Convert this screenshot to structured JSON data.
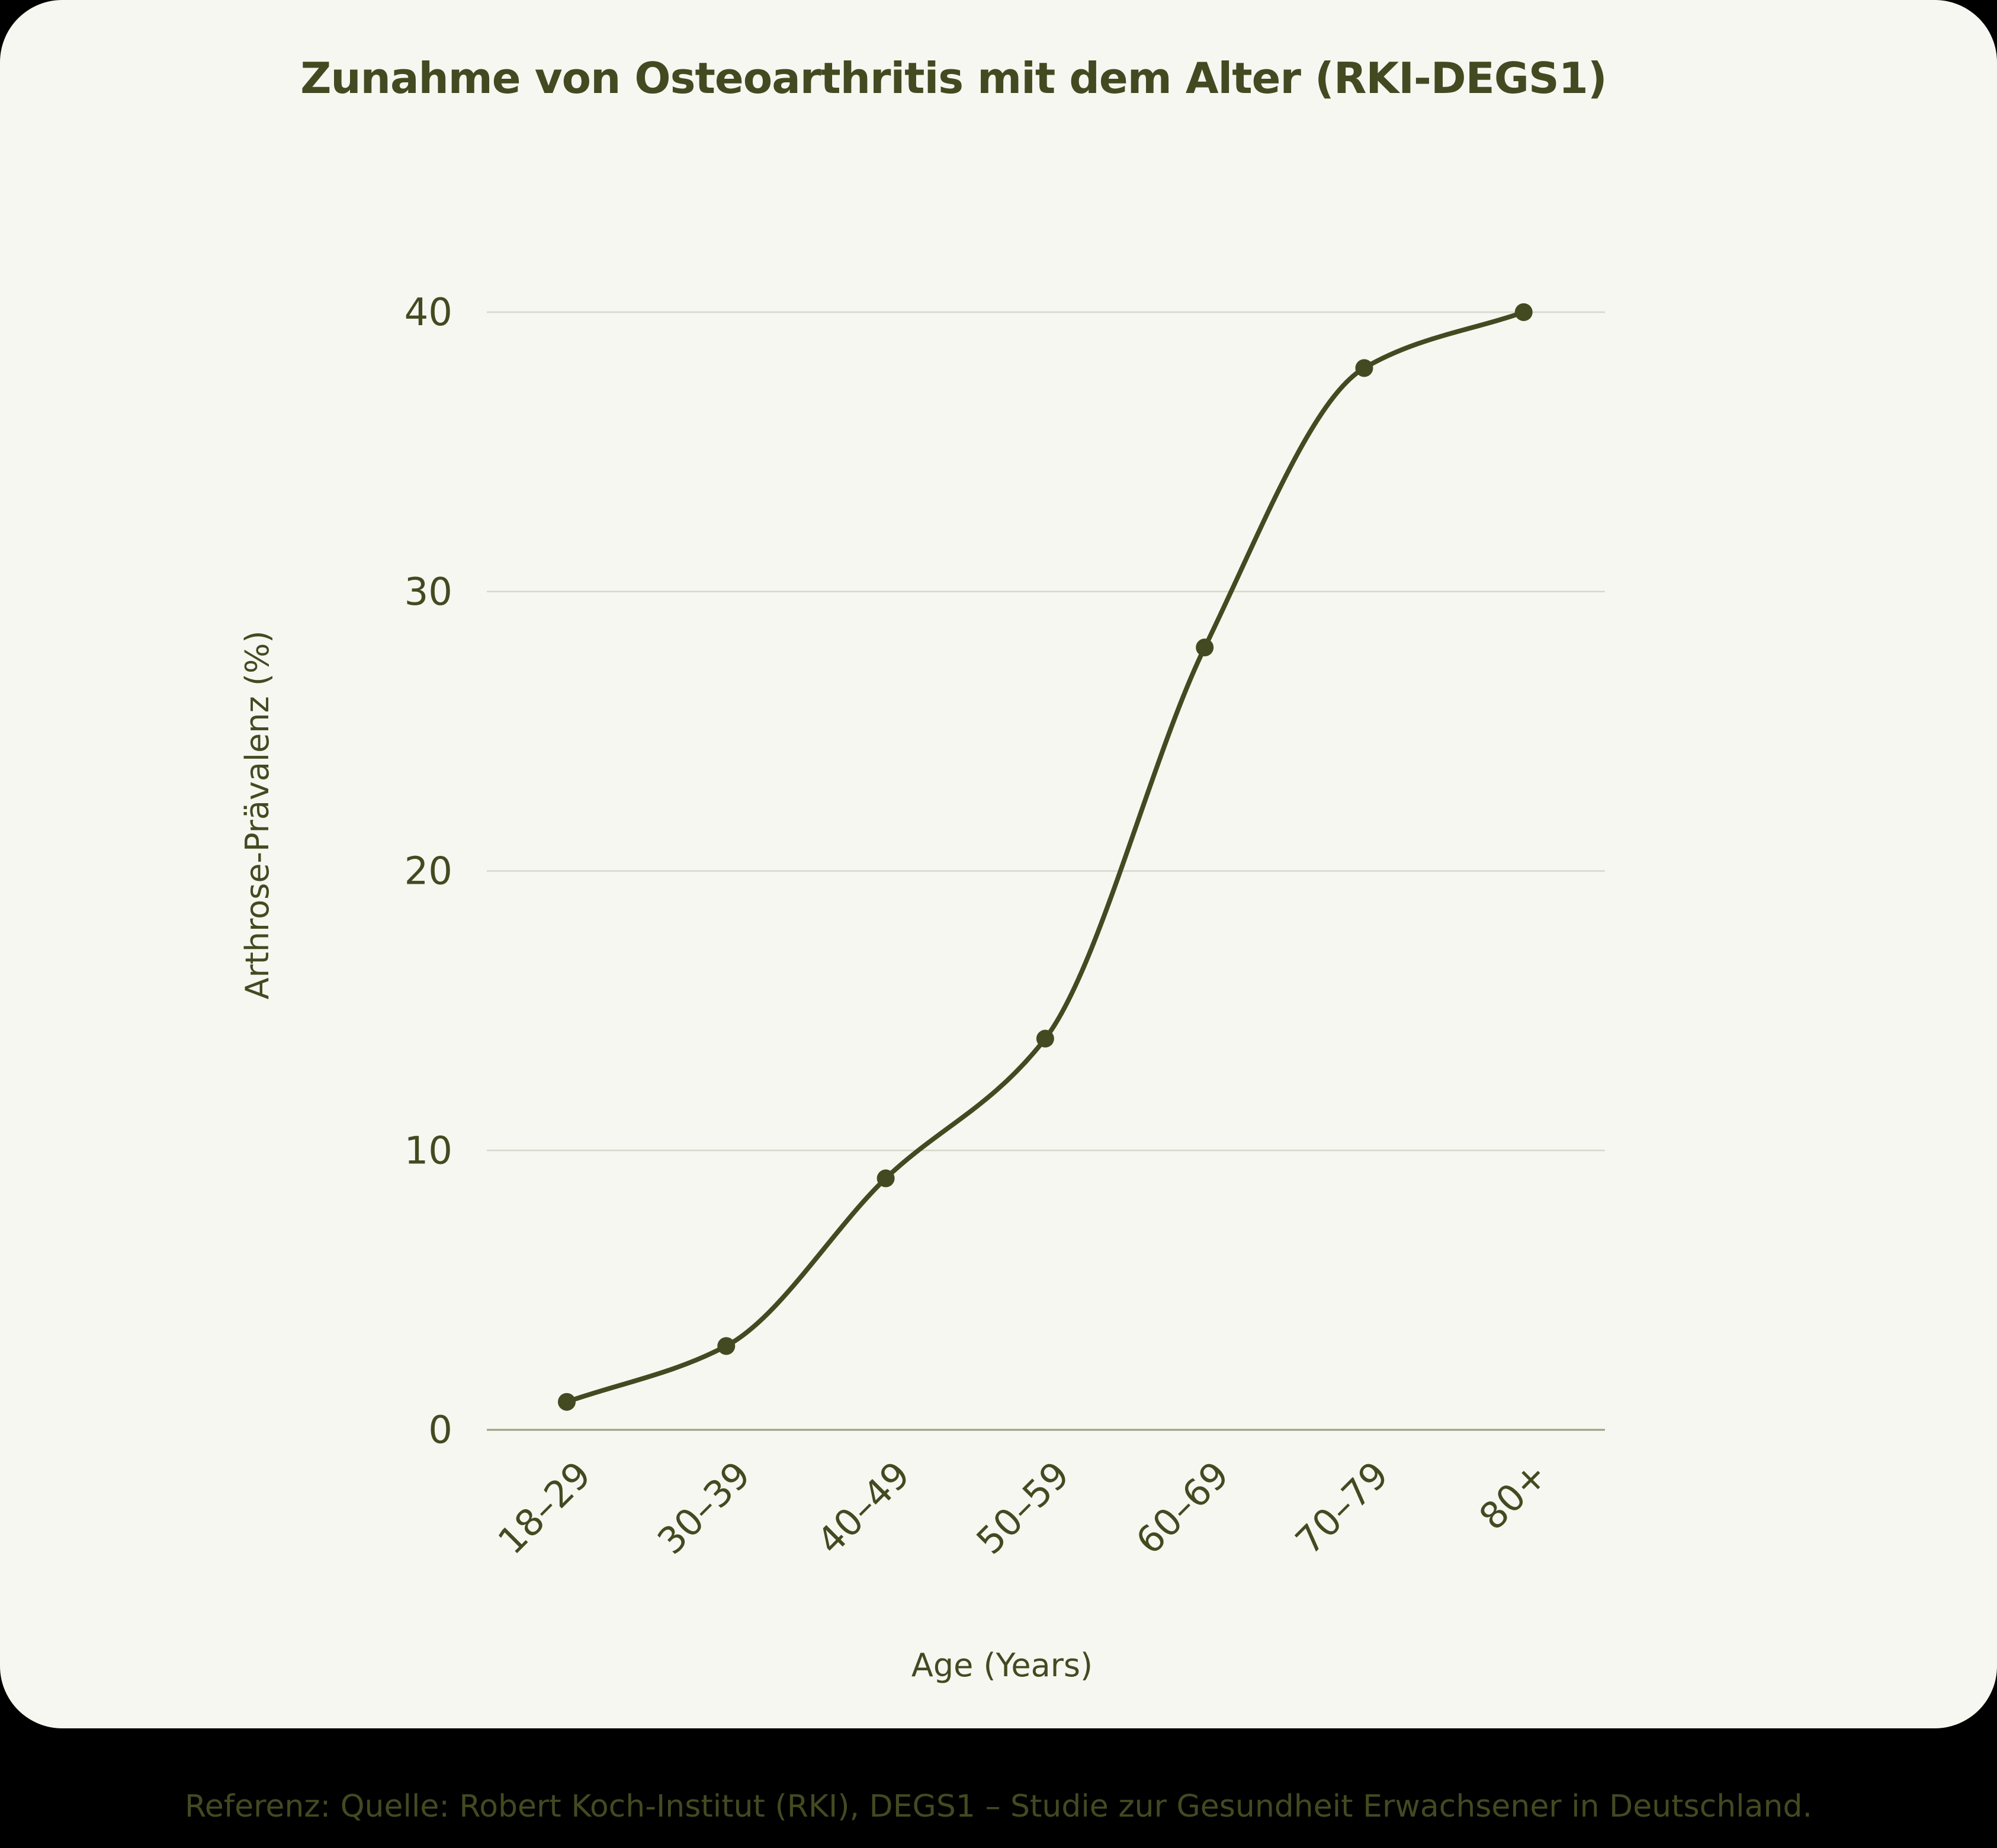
{
  "title": "Zunahme von Osteoarthritis mit dem Alter (RKI-DEGS1)",
  "footer": "Referenz: Quelle: Robert Koch-Institut (RKI), DEGS1 – Studie zur Gesundheit Erwachsener in Deutschland.",
  "colors": {
    "background": "#f6f7f0",
    "line": "#434a21",
    "text": "#434a21",
    "grid": "#d6d8cc",
    "baseline": "#9a9d82",
    "outer": "#000000"
  },
  "chart_data": {
    "type": "line",
    "title": "Zunahme von Osteoarthritis mit dem Alter (RKI-DEGS1)",
    "xlabel": "Age (Years)",
    "ylabel": "Arthrose-Prävalenz (%)",
    "categories": [
      "18–29",
      "30–39",
      "40–49",
      "50–59",
      "60–69",
      "70–79",
      "80+"
    ],
    "series": [
      {
        "name": "Arthrose-Prävalenz (%)",
        "values": [
          1,
          3,
          9,
          14,
          28,
          38,
          40
        ]
      }
    ],
    "yticks": [
      0,
      10,
      20,
      30,
      40
    ],
    "ylim": [
      0,
      40
    ],
    "grid": {
      "horizontal": true,
      "vertical": false
    },
    "legend": "none",
    "curve": "smooth",
    "markers": true
  }
}
